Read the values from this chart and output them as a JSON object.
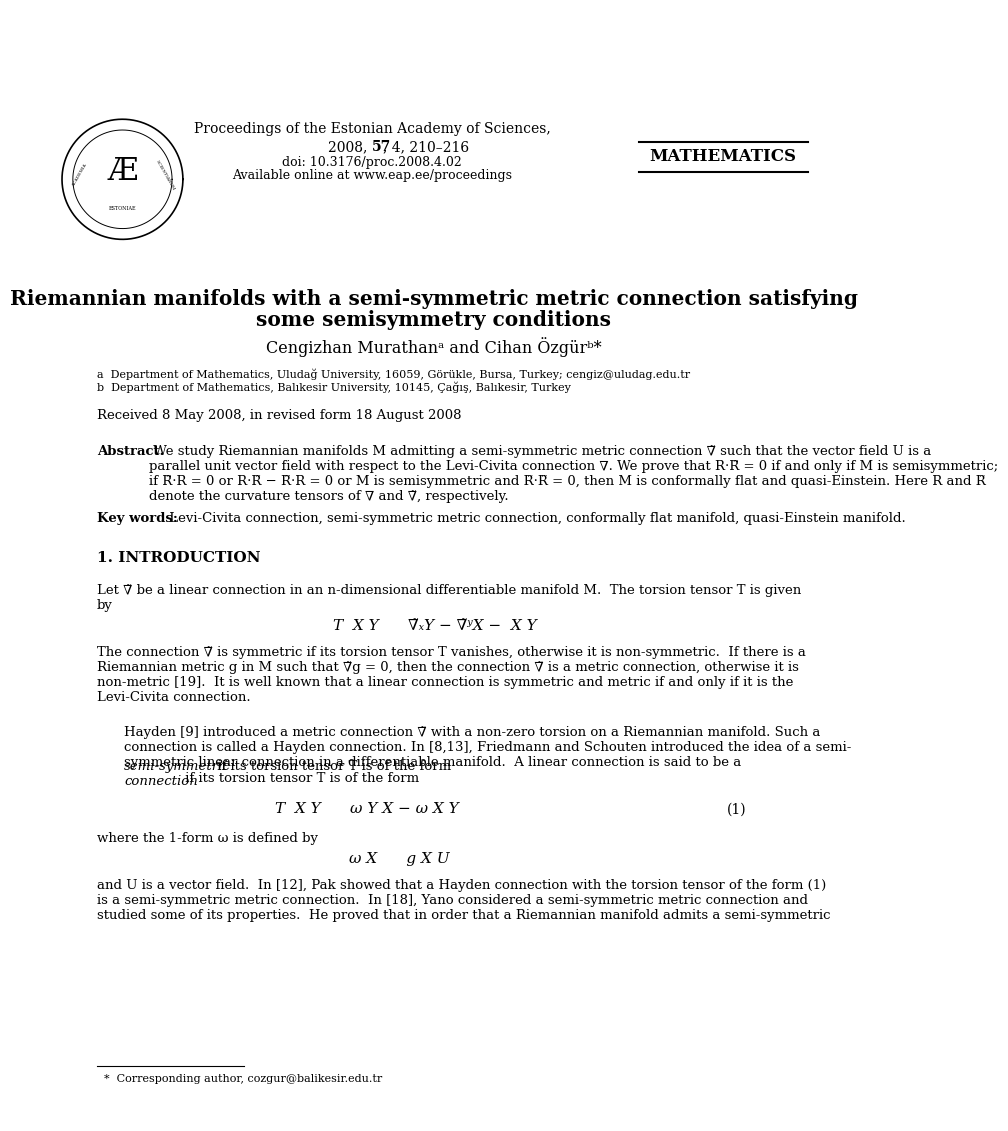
{
  "bg_color": "#ffffff",
  "page_width": 10.2,
  "page_height": 14.43,
  "journal_line1": "Proceedings of the Estonian Academy of Sciences,",
  "journal_line2_pre": "2008, ",
  "journal_line2_bold": "57",
  "journal_line2_post": ", 4, 210–216",
  "doi_line": "doi: 10.3176/proc.2008.4.02",
  "available_line": "Available online at www.eap.ee/proceedings",
  "math_label": "MATHEMATICS",
  "paper_title_line1": "Riemannian manifolds with a semi-symmetric metric connection satisfying",
  "paper_title_line2": "some semisymmetry conditions",
  "authors_pre": "Cengizhan Murathan",
  "authors_sup_a": "a",
  "authors_mid": " and Cihan Özgür",
  "authors_sup_b": "b",
  "authors_post": "*",
  "affil_a": "a  Department of Mathematics, Uludağ University, 16059, Görükle, Bursa, Turkey; cengiz@uludag.edu.tr",
  "affil_b": "b  Department of Mathematics, Balıkesir University, 10145, Çağış, Balıkesir, Turkey",
  "received": "Received 8 May 2008, in revised form 18 August 2008",
  "abstract_label": "Abstract.",
  "abstract_body": " We study Riemannian manifolds M admitting a semi-symmetric metric connection ∇̃ such that the vector field U is a\nparallel unit vector field with respect to the Levi-Civita connection ∇. We prove that R·R̃ = 0 if and only if M is semisymmetric;\nif R̃·R = 0 or R·R̃ − R̃·R = 0 or M is semisymmetric and R̃·R̃ = 0, then M is conformally flat and quasi-Einstein. Here R and R̃\ndenote the curvature tensors of ∇ and ∇̃, respectively.",
  "keywords_label": "Key words:",
  "keywords_text": " Levi-Civita connection, semi-symmetric metric connection, conformally flat manifold, quasi-Einstein manifold.",
  "section1": "1. INTRODUCTION",
  "intro_text1": "Let ∇̃ be a linear connection in an n-dimensional differentiable manifold M.  The torsion tensor T is given\nby",
  "equation1": "T  X Y      ∇̃ₓY − ∇̃ʸX −  X Y",
  "intro_text2": "The connection ∇̃ is symmetric if its torsion tensor T vanishes, otherwise it is non-symmetric.  If there is a\nRiemannian metric g in M such that ∇̃g = 0, then the connection ∇̃ is a metric connection, otherwise it is\nnon-metric [19].  It is well known that a linear connection is symmetric and metric if and only if it is the\nLevi-Civita connection.",
  "intro_text3a": "Hayden [9] introduced a metric connection ∇̃ with a non-zero torsion on a Riemannian manifold. Such a\nconnection is called a Hayden connection. In [8,13], Friedmann and Schouten introduced the idea of a semi-\nsymmetric linear connection in a differentiable manifold.  A linear connection is said to be a ",
  "intro_text3b": "semi-symmetric\nconnection",
  "intro_text3c": " if its torsion tensor T is of the form",
  "equation2a": "T  X Y      ω Y X − ω X Y",
  "equation2_number": "(1)",
  "text_after_eq1": "where the 1-form ω is defined by",
  "equation3": "ω X      g X U",
  "text_after_eq2": "and U is a vector field.  In [12], Pak showed that a Hayden connection with the torsion tensor of the form (1)\nis a semi-symmetric metric connection.  In [18], Yano considered a semi-symmetric metric connection and\nstudied some of its properties.  He proved that in order that a Riemannian manifold admits a semi-symmetric",
  "footnote": "  *  Corresponding author, cozgur@balikesir.edu.tr"
}
